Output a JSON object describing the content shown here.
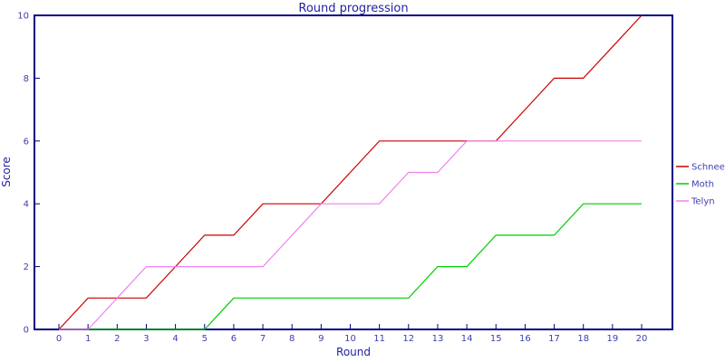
{
  "chart_data": {
    "type": "line",
    "title": "Round progression",
    "xlabel": "Round",
    "ylabel": "Score",
    "x": [
      0,
      1,
      2,
      3,
      4,
      5,
      6,
      7,
      8,
      9,
      10,
      11,
      12,
      13,
      14,
      15,
      16,
      17,
      18,
      19,
      20
    ],
    "series": [
      {
        "name": "Schnee",
        "color": "#cc0000",
        "values": [
          0,
          1,
          1,
          1,
          2,
          3,
          3,
          4,
          4,
          4,
          5,
          6,
          6,
          6,
          6,
          6,
          7,
          8,
          8,
          9,
          10
        ]
      },
      {
        "name": "Moth",
        "color": "#00cc00",
        "values": [
          0,
          0,
          0,
          0,
          0,
          0,
          1,
          1,
          1,
          1,
          1,
          1,
          1,
          2,
          2,
          3,
          3,
          3,
          4,
          4,
          4
        ]
      },
      {
        "name": "Telyn",
        "color": "#ee82ee",
        "values": [
          0,
          0,
          1,
          2,
          2,
          2,
          2,
          2,
          3,
          4,
          4,
          4,
          5,
          5,
          6,
          6,
          6,
          6,
          6,
          6,
          6
        ]
      }
    ],
    "xlim": [
      0,
      20
    ],
    "ylim": [
      0,
      10
    ],
    "xticks": [
      0,
      1,
      2,
      3,
      4,
      5,
      6,
      7,
      8,
      9,
      10,
      11,
      12,
      13,
      14,
      15,
      16,
      17,
      18,
      19,
      20
    ],
    "yticks": [
      0,
      2,
      4,
      6,
      8,
      10
    ],
    "grid": false,
    "legend_position": "right"
  },
  "colors": {
    "axis": "#000080",
    "tick_text": "#4040b0",
    "title_text": "#2222a2",
    "background": "#ffffff"
  }
}
